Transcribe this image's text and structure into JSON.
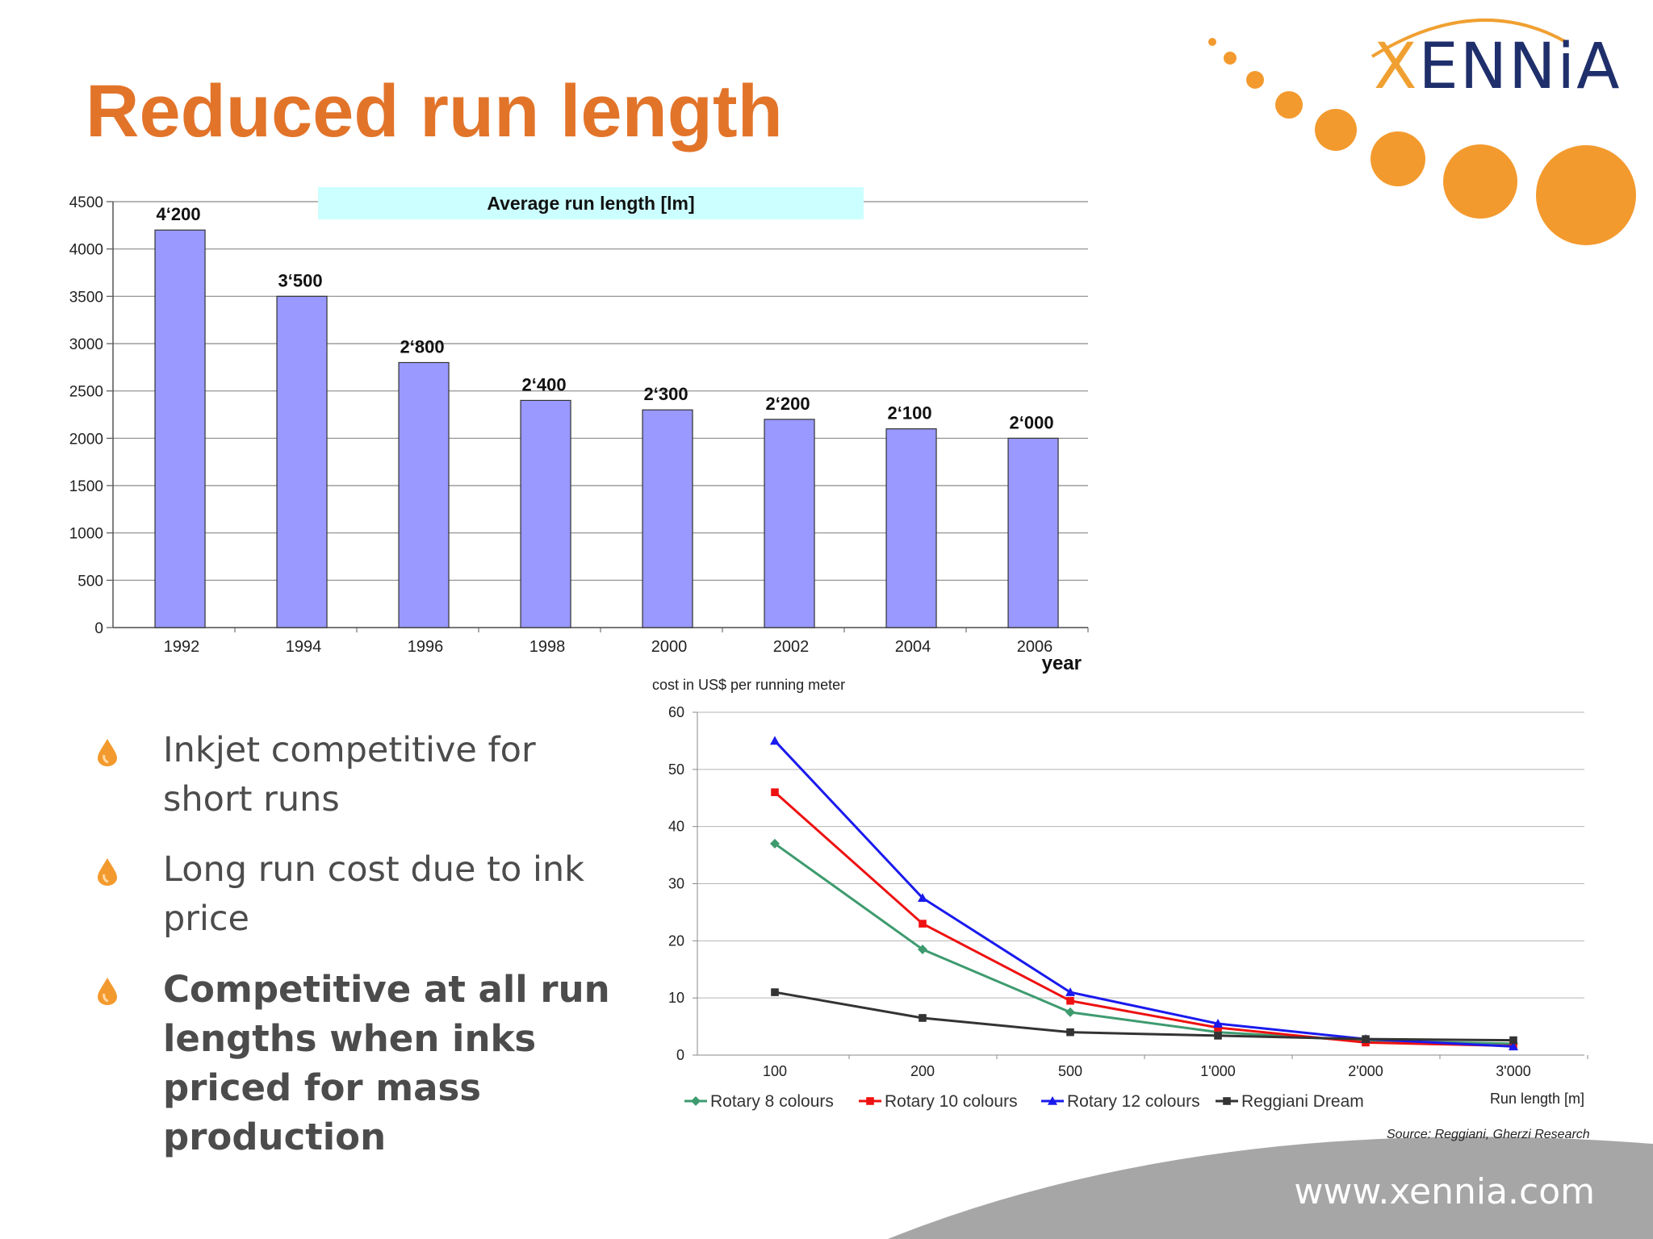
{
  "slide": {
    "title": "Reduced run length",
    "url": "www.xennia.com",
    "source": "Source: Reggiani, Gherzi Research"
  },
  "logo": {
    "text_x": "X",
    "text_rest": "ENNiA"
  },
  "bullets": [
    {
      "text": "Inkjet competitive for short runs",
      "bold": false
    },
    {
      "text": "Long run cost due to ink price",
      "bold": false
    },
    {
      "text": "Competitive at all run lengths when inks priced for mass production",
      "bold": true
    }
  ],
  "colors": {
    "accent": "#e2742a",
    "bar": "#9999ff",
    "legend_band": "#ccffff"
  },
  "chart_data": [
    {
      "type": "bar",
      "title": "Average run length [lm]",
      "xlabel": "year",
      "ylabel": "",
      "categories": [
        "1992",
        "1994",
        "1996",
        "1998",
        "2000",
        "2002",
        "2004",
        "2006"
      ],
      "values": [
        4200,
        3500,
        2800,
        2400,
        2300,
        2200,
        2100,
        2000
      ],
      "value_labels": [
        "4‘200",
        "3‘500",
        "2‘800",
        "2‘400",
        "2‘300",
        "2‘200",
        "2‘100",
        "2‘000"
      ],
      "ylim": [
        0,
        4500
      ],
      "yticks": [
        0,
        500,
        1000,
        1500,
        2000,
        2500,
        3000,
        3500,
        4000,
        4500
      ],
      "grid": true
    },
    {
      "type": "line",
      "title": "",
      "ylabel": "cost in US$ per running meter",
      "xlabel": "Run length [m]",
      "categories": [
        "100",
        "200",
        "500",
        "1'000",
        "2'000",
        "3'000"
      ],
      "ylim": [
        0,
        60
      ],
      "yticks": [
        0,
        10,
        20,
        30,
        40,
        50,
        60
      ],
      "grid": true,
      "legend_position": "bottom",
      "series": [
        {
          "name": "Rotary 8 colours",
          "color": "#3e9b6f",
          "marker": "diamond",
          "values": [
            37,
            18.5,
            7.5,
            4,
            2.5,
            2
          ]
        },
        {
          "name": "Rotary 10 colours",
          "color": "#ee1111",
          "marker": "square",
          "values": [
            46,
            23,
            9.5,
            4.8,
            2.2,
            1.6
          ]
        },
        {
          "name": "Rotary 12 colours",
          "color": "#1a1aee",
          "marker": "triangle",
          "values": [
            55,
            27.5,
            11,
            5.5,
            2.8,
            1.5
          ]
        },
        {
          "name": "Reggiani Dream",
          "color": "#333333",
          "marker": "square",
          "values": [
            11,
            6.5,
            4,
            3.4,
            2.8,
            2.6
          ]
        }
      ]
    }
  ]
}
